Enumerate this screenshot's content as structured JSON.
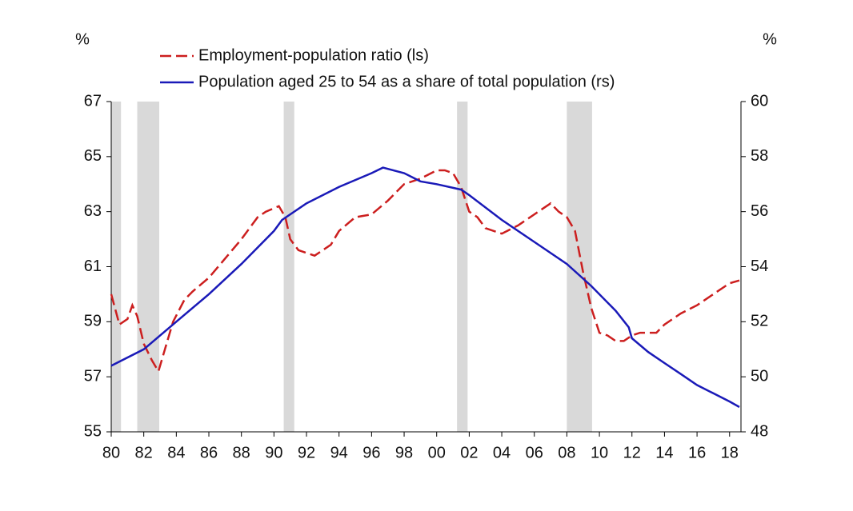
{
  "chart_data": {
    "type": "line",
    "ylabel": "%",
    "y2label": "%",
    "xlim": [
      1980,
      2018.7
    ],
    "xticks": [
      {
        "value": 1980,
        "label": "80"
      },
      {
        "value": 1982,
        "label": "82"
      },
      {
        "value": 1984,
        "label": "84"
      },
      {
        "value": 1986,
        "label": "86"
      },
      {
        "value": 1988,
        "label": "88"
      },
      {
        "value": 1990,
        "label": "90"
      },
      {
        "value": 1992,
        "label": "92"
      },
      {
        "value": 1994,
        "label": "94"
      },
      {
        "value": 1996,
        "label": "96"
      },
      {
        "value": 1998,
        "label": "98"
      },
      {
        "value": 2000,
        "label": "00"
      },
      {
        "value": 2002,
        "label": "02"
      },
      {
        "value": 2004,
        "label": "04"
      },
      {
        "value": 2006,
        "label": "06"
      },
      {
        "value": 2008,
        "label": "08"
      },
      {
        "value": 2010,
        "label": "10"
      },
      {
        "value": 2012,
        "label": "12"
      },
      {
        "value": 2014,
        "label": "14"
      },
      {
        "value": 2016,
        "label": "16"
      },
      {
        "value": 2018,
        "label": "18"
      }
    ],
    "ylim": [
      55,
      67
    ],
    "yticks": [
      55,
      57,
      59,
      61,
      63,
      65,
      67
    ],
    "y2lim": [
      48,
      60
    ],
    "y2ticks": [
      48,
      50,
      52,
      54,
      56,
      58,
      60
    ],
    "shaded_periods": [
      [
        1980.0,
        1980.6
      ],
      [
        1981.6,
        1982.95
      ],
      [
        1990.6,
        1991.25
      ],
      [
        2001.25,
        2001.9
      ],
      [
        2008.0,
        2009.55
      ]
    ],
    "shade_color": "#d9d9d9",
    "series": [
      {
        "name": "Employment-population ratio (ls)",
        "color": "#cc1f1f",
        "dashed": true,
        "x": [
          1980.0,
          1980.5,
          1981.0,
          1981.3,
          1981.6,
          1982.0,
          1982.5,
          1982.9,
          1983.3,
          1983.8,
          1984.5,
          1985.0,
          1986.0,
          1987.0,
          1988.0,
          1989.0,
          1989.5,
          1990.3,
          1990.7,
          1991.0,
          1991.5,
          1992.0,
          1992.5,
          1993.0,
          1993.5,
          1994.0,
          1995.0,
          1996.0,
          1997.0,
          1998.0,
          1999.0,
          2000.0,
          2000.5,
          2001.0,
          2001.5,
          2002.0,
          2002.5,
          2003.0,
          2004.0,
          2005.0,
          2006.0,
          2007.0,
          2007.5,
          2008.0,
          2008.5,
          2009.0,
          2009.5,
          2010.0,
          2010.5,
          2011.0,
          2011.5,
          2012.0,
          2012.5,
          2013.0,
          2013.5,
          2014.0,
          2015.0,
          2016.0,
          2017.0,
          2018.0,
          2018.6
        ],
        "values": [
          60.0,
          58.9,
          59.1,
          59.6,
          59.2,
          58.2,
          57.6,
          57.2,
          58.0,
          59.0,
          59.8,
          60.1,
          60.6,
          61.3,
          62.0,
          62.8,
          63.0,
          63.2,
          62.8,
          62.0,
          61.6,
          61.5,
          61.4,
          61.6,
          61.8,
          62.3,
          62.8,
          62.9,
          63.4,
          64.0,
          64.2,
          64.5,
          64.5,
          64.4,
          63.9,
          63.0,
          62.8,
          62.4,
          62.2,
          62.5,
          62.9,
          63.3,
          63.0,
          62.8,
          62.3,
          60.8,
          59.5,
          58.6,
          58.5,
          58.3,
          58.3,
          58.5,
          58.6,
          58.6,
          58.6,
          58.9,
          59.3,
          59.6,
          60.0,
          60.4,
          60.5
        ]
      },
      {
        "name": "Population aged 25 to 54 as a share of total population (rs)",
        "color": "#1a1ab8",
        "dashed": false,
        "axis": "y2",
        "x": [
          1980,
          1982,
          1984,
          1986,
          1988,
          1990,
          1990.5,
          1992,
          1994,
          1996,
          1996.7,
          1998,
          1999,
          2000,
          2001.5,
          2002,
          2004,
          2006,
          2008,
          2009.5,
          2011,
          2011.8,
          2012,
          2013,
          2014,
          2015,
          2016,
          2017,
          2018,
          2018.6
        ],
        "values": [
          50.4,
          51.0,
          52.0,
          53.0,
          54.1,
          55.3,
          55.7,
          56.3,
          56.9,
          57.4,
          57.6,
          57.4,
          57.1,
          57.0,
          56.8,
          56.6,
          55.7,
          54.9,
          54.1,
          53.3,
          52.4,
          51.8,
          51.4,
          50.9,
          50.5,
          50.1,
          49.7,
          49.4,
          49.1,
          48.9
        ]
      }
    ]
  }
}
